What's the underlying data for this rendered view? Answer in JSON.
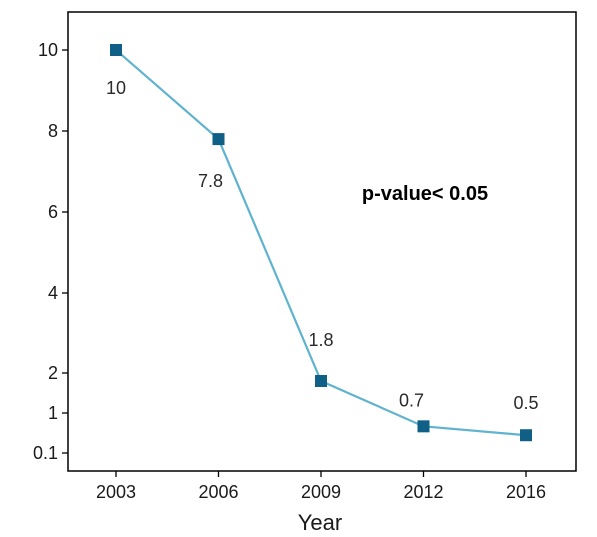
{
  "chart_data": {
    "type": "line",
    "xlabel": "Year",
    "ylabel": "",
    "x": [
      "2003",
      "2006",
      "2009",
      "2012",
      "2016"
    ],
    "series": [
      {
        "values": [
          10,
          7.8,
          1.8,
          0.7,
          0.5
        ],
        "data_labels": [
          "10",
          "7.8",
          "1.8",
          "0.7",
          "0.5"
        ]
      }
    ],
    "y_ticks": [
      {
        "label": "10",
        "value": 10
      },
      {
        "label": "8",
        "value": 8
      },
      {
        "label": "6",
        "value": 6
      },
      {
        "label": "4",
        "value": 4
      },
      {
        "label": "2",
        "value": 2
      },
      {
        "label": "1",
        "value": 1
      },
      {
        "label": "0.1",
        "value": 0.1
      }
    ],
    "annotation": "p-value< 0.05",
    "grid": false,
    "legend": "none",
    "colors": {
      "line": "#5fb3cf",
      "marker": "#0f5f86",
      "axis": "#000000"
    }
  }
}
